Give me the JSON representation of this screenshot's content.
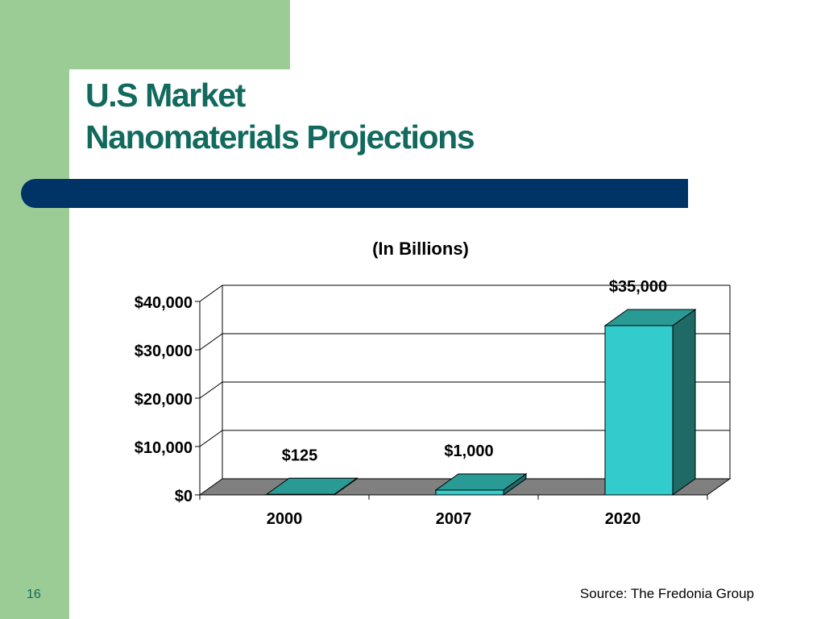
{
  "slide": {
    "title_line1": "U.S Market",
    "title_line2": "Nanomaterials Projections",
    "page_number": "16",
    "source": "Source: The Fredonia Group"
  },
  "colors": {
    "green_background": "#9ccc96",
    "title": "#116a5d",
    "navy_bar": "#003366",
    "bar_front": "#33cccc",
    "bar_top": "#2a9a95",
    "bar_side": "#1f6a66",
    "floor": "#808080"
  },
  "chart_data": {
    "type": "bar",
    "title": "(In  Billions)",
    "categories": [
      "2000",
      "2007",
      "2020"
    ],
    "values": [
      125,
      1000,
      35000
    ],
    "value_labels": [
      "$125",
      "$1,000",
      "$35,000"
    ],
    "ylim": [
      0,
      40000
    ],
    "yticks": [
      0,
      10000,
      20000,
      30000,
      40000
    ],
    "ytick_labels": [
      "$0",
      "$10,000",
      "$20,000",
      "$30,000",
      "$40,000"
    ],
    "xlabel": "",
    "ylabel": "",
    "grid": true,
    "legend": "none"
  }
}
